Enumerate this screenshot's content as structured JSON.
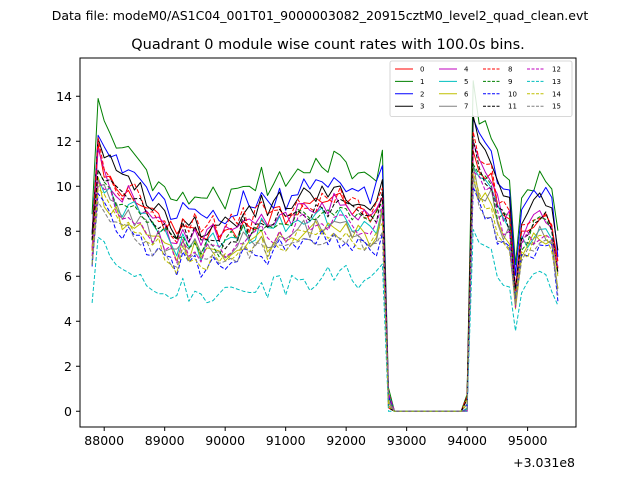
{
  "chart_data": {
    "type": "line",
    "suptitle": "Data file: modeM0/AS1C04_001T01_9000003082_20915cztM0_level2_quad_clean.evt",
    "title": "Quadrant 0 module wise count rates with 100.0s bins.",
    "xlabel": "",
    "ylabel": "",
    "x_offset_label": "+3.031e8",
    "x_offset": 303100000,
    "xlim": [
      87600,
      95800
    ],
    "ylim": [
      -0.7,
      15.7
    ],
    "x_ticks": [
      88000,
      89000,
      90000,
      91000,
      92000,
      93000,
      94000,
      95000
    ],
    "x_tick_labels": [
      "88000",
      "89000",
      "90000",
      "91000",
      "92000",
      "93000",
      "94000",
      "95000"
    ],
    "y_ticks": [
      0,
      2,
      4,
      6,
      8,
      10,
      12,
      14
    ],
    "y_tick_labels": [
      "0",
      "2",
      "4",
      "6",
      "8",
      "10",
      "12",
      "14"
    ],
    "grid": false,
    "legend_position": "top-right",
    "legend_columns": 4,
    "x_start": 87800,
    "x_step": 100,
    "gap_start_index": 49,
    "gap_end_index": 62,
    "series": [
      {
        "name": "0",
        "color": "#ff0000",
        "dash": "solid",
        "base": 1.0
      },
      {
        "name": "1",
        "color": "#008000",
        "dash": "solid",
        "base": 1.19
      },
      {
        "name": "2",
        "color": "#0000ff",
        "dash": "solid",
        "base": 1.1
      },
      {
        "name": "3",
        "color": "#000000",
        "dash": "solid",
        "base": 1.06
      },
      {
        "name": "4",
        "color": "#bf00bf",
        "dash": "solid",
        "base": 0.99
      },
      {
        "name": "5",
        "color": "#00bfbf",
        "dash": "solid",
        "base": 0.93
      },
      {
        "name": "6",
        "color": "#bfbf00",
        "dash": "solid",
        "base": 0.88
      },
      {
        "name": "7",
        "color": "#808080",
        "dash": "solid",
        "base": 0.9
      },
      {
        "name": "8",
        "color": "#ff0000",
        "dash": "dashed",
        "base": 1.02
      },
      {
        "name": "9",
        "color": "#008000",
        "dash": "dashed",
        "base": 0.95
      },
      {
        "name": "10",
        "color": "#0000ff",
        "dash": "dashed",
        "base": 0.82
      },
      {
        "name": "11",
        "color": "#000000",
        "dash": "dashed",
        "base": 0.97
      },
      {
        "name": "12",
        "color": "#bf00bf",
        "dash": "dashed",
        "base": 0.91
      },
      {
        "name": "13",
        "color": "#00bfbf",
        "dash": "dashed",
        "base": 0.66
      },
      {
        "name": "14",
        "color": "#bfbf00",
        "dash": "dashed",
        "base": 0.86
      },
      {
        "name": "15",
        "color": "#808080",
        "dash": "dashed",
        "base": 0.84
      }
    ],
    "profile": [
      7.6,
      11.5,
      10.8,
      10.4,
      10.0,
      9.6,
      9.7,
      9.6,
      9.3,
      9.0,
      8.6,
      8.5,
      8.3,
      8.0,
      7.6,
      8.3,
      7.8,
      8.2,
      7.6,
      7.8,
      8.1,
      7.7,
      7.9,
      8.2,
      8.0,
      8.6,
      8.2,
      8.5,
      8.8,
      8.3,
      8.6,
      8.9,
      8.5,
      8.8,
      9.0,
      9.2,
      8.8,
      9.1,
      9.3,
      9.1,
      9.5,
      9.3,
      9.2,
      9.0,
      8.9,
      8.7,
      8.6,
      8.9,
      9.8,
      0.5,
      0.0,
      0.0,
      0.0,
      0.0,
      0.0,
      0.0,
      0.0,
      0.0,
      0.0,
      0.0,
      0.0,
      0.0,
      0.3,
      12.0,
      11.0,
      10.7,
      10.5,
      9.4,
      8.8,
      8.7,
      5.4,
      8.0,
      8.3,
      8.6,
      8.8,
      8.7,
      8.5,
      6.5
    ]
  }
}
